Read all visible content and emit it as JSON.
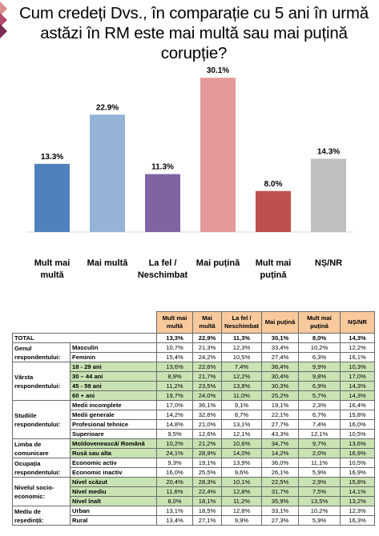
{
  "title": "Cum credeți Dvs., în comparație cu 5 ani în urmă astăzi în RM este mai multă sau mai puțină corupție?",
  "chart_data": {
    "type": "bar",
    "categories": [
      "Mult mai multă",
      "Mai multă",
      "La fel / Neschimbat",
      "Mai puțină",
      "Mult mai puțină",
      "NȘ/NR"
    ],
    "values": [
      13.3,
      22.9,
      11.3,
      30.1,
      8.0,
      14.3
    ],
    "value_labels": [
      "13.3%",
      "22.9%",
      "11.3%",
      "30.1%",
      "8.0%",
      "14.3%"
    ],
    "colors": [
      "#4f81bd",
      "#95b3d7",
      "#8064a2",
      "#e6999b",
      "#c0504d",
      "#bfbfbf"
    ],
    "ylim": [
      0,
      32
    ],
    "xlabel": "",
    "ylabel": "",
    "grid": false,
    "legend": "none"
  },
  "table": {
    "headers": [
      "Mult mai multă",
      "Mai multă",
      "La fel / Neschimbat",
      "Mai puțină",
      "Mult mai puțină",
      "NȘ/NR"
    ],
    "total": {
      "label": "TOTAL",
      "values": [
        "13,3%",
        "22,9%",
        "11,3%",
        "30,1%",
        "8,0%",
        "14,3%"
      ]
    },
    "groups": [
      {
        "label": "Genul respondentului:",
        "rows": [
          {
            "label": "Masculin",
            "values": [
              "10,7%",
              "21,3%",
              "12,3%",
              "33,4%",
              "10,2%",
              "12,2%"
            ]
          },
          {
            "label": "Feminin",
            "values": [
              "15,4%",
              "24,2%",
              "10,5%",
              "27,4%",
              "6,3%",
              "16,1%"
            ]
          }
        ]
      },
      {
        "label": "Vârsta respondentului:",
        "rows": [
          {
            "label": "18 - 29 ani",
            "values": [
              "13,6%",
              "22,6%",
              "7,4%",
              "36,4%",
              "9,9%",
              "10,3%"
            ]
          },
          {
            "label": "30 – 44 ani",
            "values": [
              "8,9%",
              "21,7%",
              "12,2%",
              "30,4%",
              "9,8%",
              "17,0%"
            ]
          },
          {
            "label": "45 - 59 ani",
            "values": [
              "11,2%",
              "23,5%",
              "13,8%",
              "30,3%",
              "6,9%",
              "14,3%"
            ]
          },
          {
            "label": "60 + ani",
            "values": [
              "19,7%",
              "24,0%",
              "11,0%",
              "25,2%",
              "5,7%",
              "14,3%"
            ]
          }
        ]
      },
      {
        "label": "Studiile respondentului:",
        "rows": [
          {
            "label": "Medii incomplete",
            "values": [
              "17,0%",
              "36,1%",
              "9,1%",
              "19,1%",
              "2,3%",
              "16,4%"
            ]
          },
          {
            "label": "Medii generale",
            "values": [
              "14,2%",
              "32,6%",
              "8,7%",
              "22,1%",
              "6,7%",
              "15,8%"
            ]
          },
          {
            "label": "Profesional tehnice",
            "values": [
              "14,8%",
              "21,0%",
              "13,1%",
              "27,7%",
              "7,4%",
              "16,0%"
            ]
          },
          {
            "label": "Superioare",
            "values": [
              "9,5%",
              "12,6%",
              "12,1%",
              "43,3%",
              "12,1%",
              "10,5%"
            ]
          }
        ]
      },
      {
        "label": "Limba de comunicare",
        "rows": [
          {
            "label": "Moldovenească/ Română",
            "values": [
              "10,2%",
              "21,2%",
              "10,6%",
              "34,7%",
              "9,7%",
              "13,6%"
            ]
          },
          {
            "label": "Rusă sau alta",
            "values": [
              "24,1%",
              "28,9%",
              "14,0%",
              "14,2%",
              "2,0%",
              "16,9%"
            ]
          }
        ]
      },
      {
        "label": "Ocupația respondentului:",
        "rows": [
          {
            "label": "Economic activ",
            "values": [
              "9,3%",
              "19,1%",
              "13,9%",
              "36,0%",
              "11,1%",
              "10,5%"
            ]
          },
          {
            "label": "Economic inactiv",
            "values": [
              "16,0%",
              "25,5%",
              "9,6%",
              "26,1%",
              "5,9%",
              "16,9%"
            ]
          }
        ]
      },
      {
        "label": "Nivelul socio-economic:",
        "rows": [
          {
            "label": "Nivel scăzut",
            "values": [
              "20,4%",
              "28,3%",
              "10,1%",
              "22,5%",
              "2,9%",
              "15,8%"
            ]
          },
          {
            "label": "Nivel mediu",
            "values": [
              "11,6%",
              "22,4%",
              "12,8%",
              "31,7%",
              "7,5%",
              "14,1%"
            ]
          },
          {
            "label": "Nivel înalt",
            "values": [
              "8,0%",
              "18,1%",
              "11,2%",
              "35,9%",
              "13,5%",
              "13,2%"
            ]
          }
        ]
      },
      {
        "label": "Mediu de reședință:",
        "rows": [
          {
            "label": "Urban",
            "values": [
              "13,1%",
              "18,5%",
              "12,8%",
              "33,1%",
              "10,2%",
              "12,3%"
            ]
          },
          {
            "label": "Rural",
            "values": [
              "13,4%",
              "27,1%",
              "9,9%",
              "27,3%",
              "5,9%",
              "16,3%"
            ]
          }
        ]
      }
    ]
  }
}
